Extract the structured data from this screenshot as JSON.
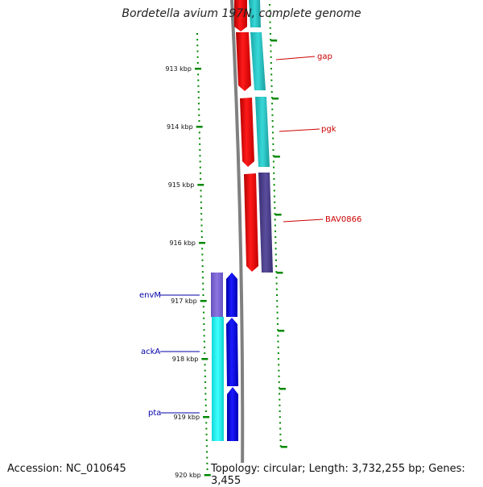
{
  "title": "Bordetella avium 197N, complete genome",
  "footer": {
    "accession": "Accession: NC_010645",
    "summary": "Topology: circular; Length: 3,732,255 bp; Genes: 3,455"
  },
  "ticks": [
    "913 kbp",
    "914 kbp",
    "915 kbp",
    "916 kbp",
    "917 kbp",
    "918 kbp",
    "919 kbp",
    "920 kbp"
  ],
  "genes": [
    {
      "name": "gap",
      "strand": "forward",
      "color": "#ff0000",
      "cog_color": "#2ac6c6"
    },
    {
      "name": "pgk",
      "strand": "forward",
      "color": "#ff0000",
      "cog_color": "#2ac6c6"
    },
    {
      "name": "BAV0866",
      "strand": "forward",
      "color": "#ff0000",
      "cog_color": "#4a3f86"
    },
    {
      "name": "envM",
      "strand": "reverse",
      "color": "#0000ee",
      "cog_color": "#7b62d4"
    },
    {
      "name": "ackA",
      "strand": "reverse",
      "color": "#0000ee",
      "cog_color": "#17f2f2"
    },
    {
      "name": "pta",
      "strand": "reverse",
      "color": "#0000ee",
      "cog_color": "#17f2f2"
    }
  ],
  "colors": {
    "forward_label": "#cc0000",
    "reverse_label": "#0000aa",
    "tick": "#008800",
    "backbone": "#808080"
  }
}
